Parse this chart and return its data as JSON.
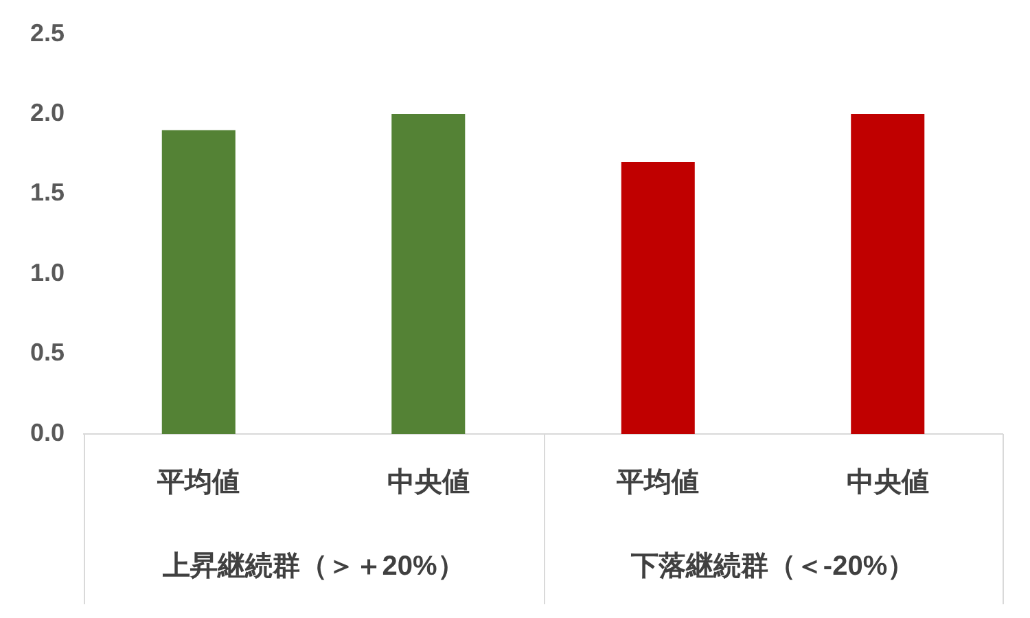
{
  "chart_data": {
    "type": "bar",
    "categories": [
      "平均値",
      "中央値",
      "平均値",
      "中央値"
    ],
    "values": [
      1.9,
      2.0,
      1.7,
      2.0
    ],
    "colors": [
      "#548235",
      "#548235",
      "#c00000",
      "#c00000"
    ],
    "ylim": [
      0,
      2.5
    ],
    "yticks": [
      {
        "value": 0,
        "label": "0.0"
      },
      {
        "value": 0.5,
        "label": "0.5"
      },
      {
        "value": 1,
        "label": "1.0"
      },
      {
        "value": 1.5,
        "label": "1.5"
      },
      {
        "value": 2,
        "label": "2.0"
      },
      {
        "value": 2.5,
        "label": "2.5"
      }
    ],
    "grid": false,
    "legend": false,
    "annotations": [
      "上昇継続群（＞＋20%）",
      "下落継続群（＜-20%）"
    ]
  }
}
